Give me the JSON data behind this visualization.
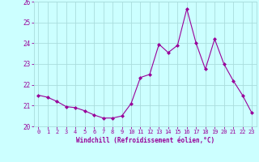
{
  "x": [
    0,
    1,
    2,
    3,
    4,
    5,
    6,
    7,
    8,
    9,
    10,
    11,
    12,
    13,
    14,
    15,
    16,
    17,
    18,
    19,
    20,
    21,
    22,
    23
  ],
  "y": [
    21.5,
    21.4,
    21.2,
    20.95,
    20.9,
    20.75,
    20.55,
    20.4,
    20.4,
    20.5,
    21.1,
    22.35,
    22.5,
    23.95,
    23.55,
    23.9,
    25.65,
    24.0,
    22.75,
    24.2,
    23.0,
    22.2,
    21.5,
    20.65
  ],
  "line_color": "#990099",
  "marker": "D",
  "marker_size": 2,
  "bg_color": "#ccffff",
  "grid_color": "#aadddd",
  "xlabel": "Windchill (Refroidissement éolien,°C)",
  "xlabel_color": "#990099",
  "tick_color": "#990099",
  "ylim": [
    20.0,
    26.0
  ],
  "yticks": [
    20,
    21,
    22,
    23,
    24,
    25,
    26
  ],
  "xticks": [
    0,
    1,
    2,
    3,
    4,
    5,
    6,
    7,
    8,
    9,
    10,
    11,
    12,
    13,
    14,
    15,
    16,
    17,
    18,
    19,
    20,
    21,
    22,
    23
  ]
}
